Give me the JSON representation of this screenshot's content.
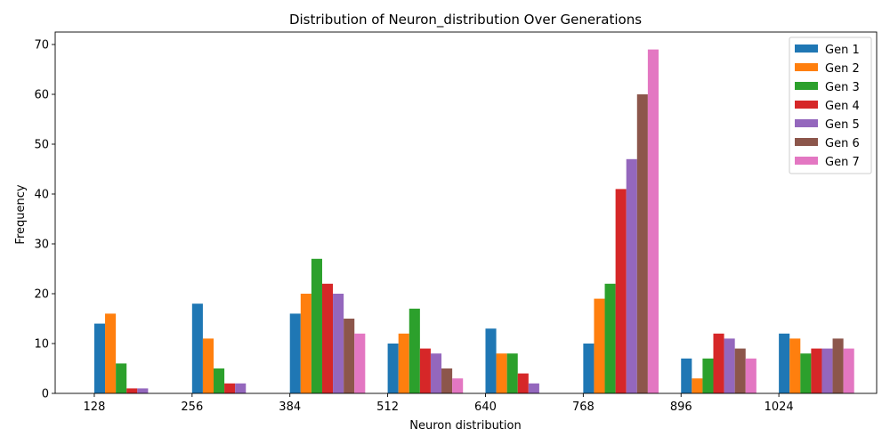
{
  "chart_data": {
    "type": "bar",
    "title": "Distribution of Neuron_distribution Over Generations",
    "xlabel": "Neuron distribution",
    "ylabel": "Frequency",
    "categories": [
      "128",
      "256",
      "384",
      "512",
      "640",
      "768",
      "896",
      "1024"
    ],
    "ylim": [
      0,
      72.5
    ],
    "yticks": [
      0,
      10,
      20,
      30,
      40,
      50,
      60,
      70
    ],
    "grid": false,
    "legend_position": "top-right",
    "series": [
      {
        "name": "Gen 1",
        "color": "#1f77b4",
        "values": [
          14,
          18,
          16,
          10,
          13,
          10,
          7,
          12
        ]
      },
      {
        "name": "Gen 2",
        "color": "#ff7f0e",
        "values": [
          16,
          11,
          20,
          12,
          8,
          19,
          3,
          11
        ]
      },
      {
        "name": "Gen 3",
        "color": "#2ca02c",
        "values": [
          6,
          5,
          27,
          17,
          8,
          22,
          7,
          8
        ]
      },
      {
        "name": "Gen 4",
        "color": "#d62728",
        "values": [
          1,
          2,
          22,
          9,
          4,
          41,
          12,
          9
        ]
      },
      {
        "name": "Gen 5",
        "color": "#9467bd",
        "values": [
          1,
          2,
          20,
          8,
          2,
          47,
          11,
          9
        ]
      },
      {
        "name": "Gen 6",
        "color": "#8c564b",
        "values": [
          0,
          0,
          15,
          5,
          0,
          60,
          9,
          11
        ]
      },
      {
        "name": "Gen 7",
        "color": "#e377c2",
        "values": [
          0,
          0,
          12,
          3,
          0,
          69,
          7,
          9
        ]
      }
    ]
  }
}
